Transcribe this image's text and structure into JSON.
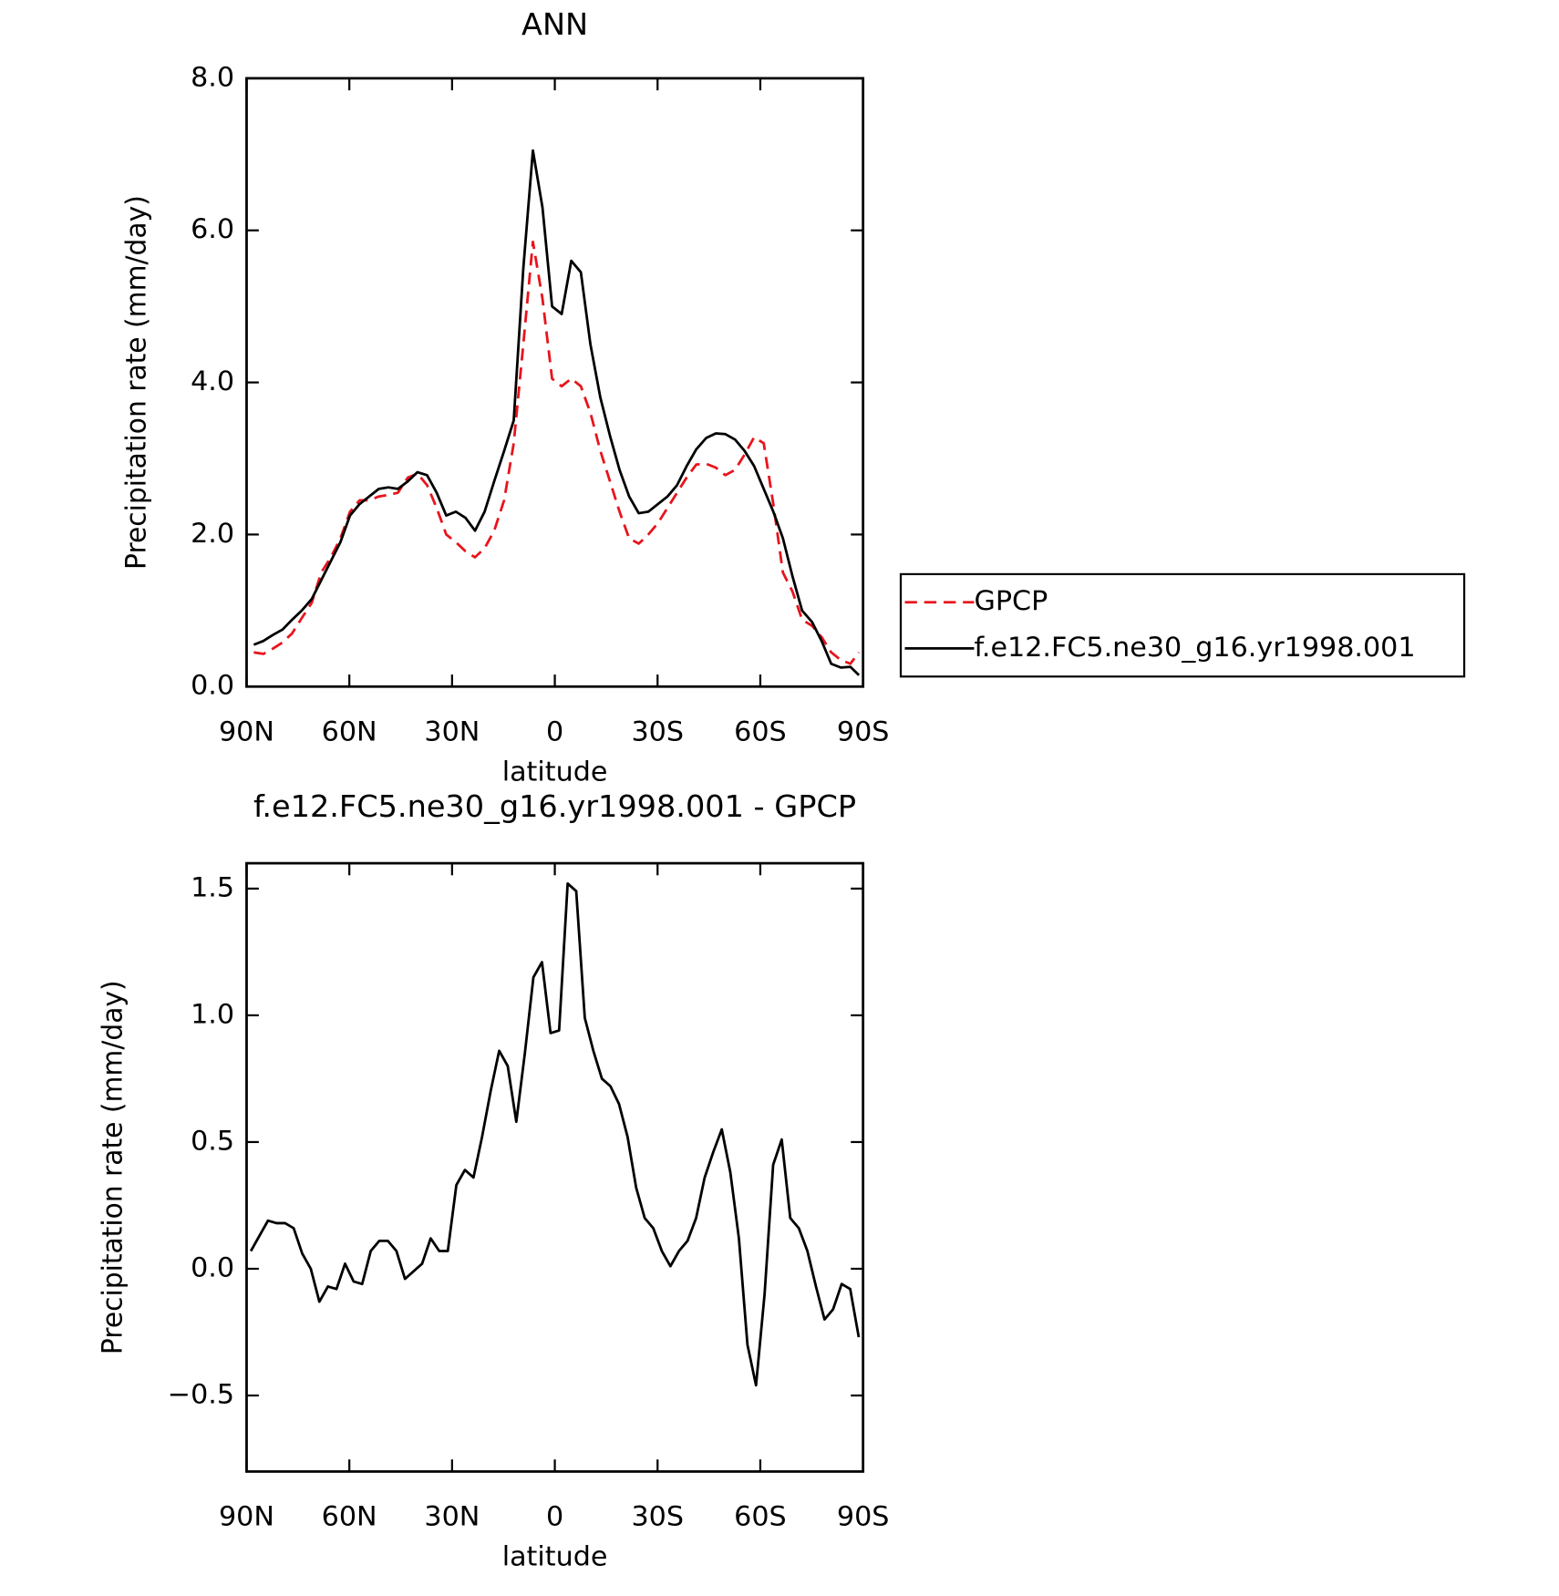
{
  "chart_data": [
    {
      "type": "line",
      "title": "ANN",
      "xlabel": "latitude",
      "ylabel": "Precipitation rate (mm/day)",
      "x": [
        87.9,
        85.1,
        82.3,
        79.5,
        76.7,
        73.9,
        71.0,
        68.2,
        65.4,
        62.6,
        59.8,
        57.0,
        54.2,
        51.4,
        48.6,
        45.8,
        42.9,
        40.1,
        37.3,
        34.5,
        31.7,
        28.9,
        26.1,
        23.3,
        20.5,
        17.7,
        14.8,
        12.0,
        9.2,
        6.4,
        3.6,
        0.8,
        -2.0,
        -4.8,
        -7.6,
        -10.4,
        -13.3,
        -16.1,
        -18.9,
        -21.7,
        -24.5,
        -27.3,
        -30.1,
        -32.9,
        -35.7,
        -38.5,
        -41.3,
        -44.2,
        -47.0,
        -49.8,
        -52.6,
        -55.4,
        -58.2,
        -61.0,
        -63.8,
        -66.6,
        -69.4,
        -72.2,
        -75.1,
        -77.9,
        -80.7,
        -83.5,
        -86.3,
        -88.8
      ],
      "series": [
        {
          "name": "GPCP",
          "color": "#e8141c",
          "dash": "dashed",
          "values": [
            0.45,
            0.43,
            0.5,
            0.58,
            0.7,
            0.9,
            1.1,
            1.5,
            1.7,
            1.95,
            2.3,
            2.45,
            2.45,
            2.5,
            2.52,
            2.55,
            2.75,
            2.8,
            2.65,
            2.35,
            2.0,
            1.9,
            1.78,
            1.7,
            1.82,
            2.05,
            2.45,
            3.2,
            4.5,
            5.85,
            5.1,
            4.05,
            3.95,
            4.05,
            3.95,
            3.6,
            3.1,
            2.7,
            2.3,
            1.95,
            1.88,
            2.0,
            2.15,
            2.35,
            2.55,
            2.75,
            2.92,
            2.93,
            2.88,
            2.78,
            2.85,
            3.05,
            3.28,
            3.2,
            2.4,
            1.5,
            1.25,
            0.88,
            0.8,
            0.65,
            0.45,
            0.35,
            0.3,
            0.45
          ]
        },
        {
          "name": "f.e12.FC5.ne30_g16.yr1998.001",
          "color": "#000000",
          "dash": "solid",
          "values": [
            0.55,
            0.6,
            0.68,
            0.75,
            0.88,
            1.0,
            1.15,
            1.4,
            1.65,
            1.9,
            2.25,
            2.4,
            2.5,
            2.6,
            2.62,
            2.6,
            2.7,
            2.82,
            2.78,
            2.55,
            2.25,
            2.3,
            2.22,
            2.05,
            2.3,
            2.7,
            3.1,
            3.5,
            5.5,
            7.05,
            6.3,
            5.0,
            4.9,
            5.6,
            5.45,
            4.5,
            3.8,
            3.3,
            2.85,
            2.5,
            2.28,
            2.3,
            2.4,
            2.5,
            2.65,
            2.9,
            3.12,
            3.27,
            3.33,
            3.32,
            3.25,
            3.1,
            2.9,
            2.6,
            2.3,
            1.95,
            1.45,
            1.0,
            0.85,
            0.6,
            0.3,
            0.25,
            0.26,
            0.15
          ]
        }
      ],
      "xlim": [
        90,
        -90
      ],
      "xticks": [
        {
          "value": 90,
          "label": "90N"
        },
        {
          "value": 60,
          "label": "60N"
        },
        {
          "value": 30,
          "label": "30N"
        },
        0,
        {
          "value": -30,
          "label": "30S"
        },
        {
          "value": -60,
          "label": "60S"
        },
        {
          "value": -90,
          "label": "90S"
        }
      ],
      "ylim": [
        0,
        8
      ],
      "yticks": [
        {
          "value": 0,
          "label": "0.0"
        },
        {
          "value": 2,
          "label": "2.0"
        },
        {
          "value": 4,
          "label": "4.0"
        },
        {
          "value": 6,
          "label": "6.0"
        },
        {
          "value": 8,
          "label": "8.0"
        }
      ],
      "legend": "right"
    },
    {
      "type": "line",
      "title": "f.e12.FC5.ne30_g16.yr1998.001 - GPCP",
      "xlabel": "latitude",
      "ylabel": "Precipitation rate (mm/day)",
      "x": [
        88.75,
        86.25,
        83.75,
        81.25,
        78.75,
        76.25,
        73.75,
        71.25,
        68.75,
        66.25,
        63.75,
        61.25,
        58.75,
        56.25,
        53.75,
        51.25,
        48.75,
        46.25,
        43.75,
        41.25,
        38.75,
        36.25,
        33.75,
        31.25,
        28.75,
        26.25,
        23.75,
        21.25,
        18.75,
        16.25,
        13.75,
        11.25,
        8.75,
        6.25,
        3.75,
        1.25,
        -1.25,
        -3.75,
        -6.25,
        -8.75,
        -11.25,
        -13.75,
        -16.25,
        -18.75,
        -21.25,
        -23.75,
        -26.25,
        -28.75,
        -31.25,
        -33.75,
        -36.25,
        -38.75,
        -41.25,
        -43.75,
        -46.25,
        -48.75,
        -51.25,
        -53.75,
        -56.25,
        -58.75,
        -61.25,
        -63.75,
        -66.25,
        -68.75,
        -71.25,
        -73.75,
        -76.25,
        -78.75,
        -81.25,
        -83.75,
        -86.25,
        -88.75
      ],
      "color": "#000000",
      "values": [
        0.07,
        0.13,
        0.19,
        0.18,
        0.18,
        0.16,
        0.06,
        0.0,
        -0.13,
        -0.07,
        -0.08,
        0.02,
        -0.05,
        -0.06,
        0.07,
        0.11,
        0.11,
        0.07,
        -0.04,
        -0.01,
        0.02,
        0.12,
        0.07,
        0.07,
        0.33,
        0.39,
        0.36,
        0.52,
        0.7,
        0.86,
        0.8,
        0.58,
        0.85,
        1.15,
        1.21,
        0.93,
        0.94,
        1.52,
        1.49,
        0.99,
        0.86,
        0.75,
        0.72,
        0.65,
        0.52,
        0.32,
        0.2,
        0.16,
        0.07,
        0.01,
        0.07,
        0.11,
        0.2,
        0.36,
        0.46,
        0.55,
        0.38,
        0.12,
        -0.3,
        -0.46,
        -0.1,
        0.41,
        0.51,
        0.2,
        0.16,
        0.07,
        -0.07,
        -0.2,
        -0.16,
        -0.06,
        -0.08,
        -0.27
      ],
      "xlim": [
        90,
        -90
      ],
      "xticks": [
        {
          "value": 90,
          "label": "90N"
        },
        {
          "value": 60,
          "label": "60N"
        },
        {
          "value": 30,
          "label": "30N"
        },
        0,
        {
          "value": -30,
          "label": "30S"
        },
        {
          "value": -60,
          "label": "60S"
        },
        {
          "value": -90,
          "label": "90S"
        }
      ],
      "ylim": [
        -0.8,
        1.6
      ],
      "yticks": [
        {
          "value": -0.5,
          "label": "−0.5"
        },
        {
          "value": 0,
          "label": "0.0"
        },
        {
          "value": 0.5,
          "label": "0.5"
        },
        {
          "value": 1,
          "label": "1.0"
        },
        {
          "value": 1.5,
          "label": "1.5"
        }
      ]
    }
  ]
}
